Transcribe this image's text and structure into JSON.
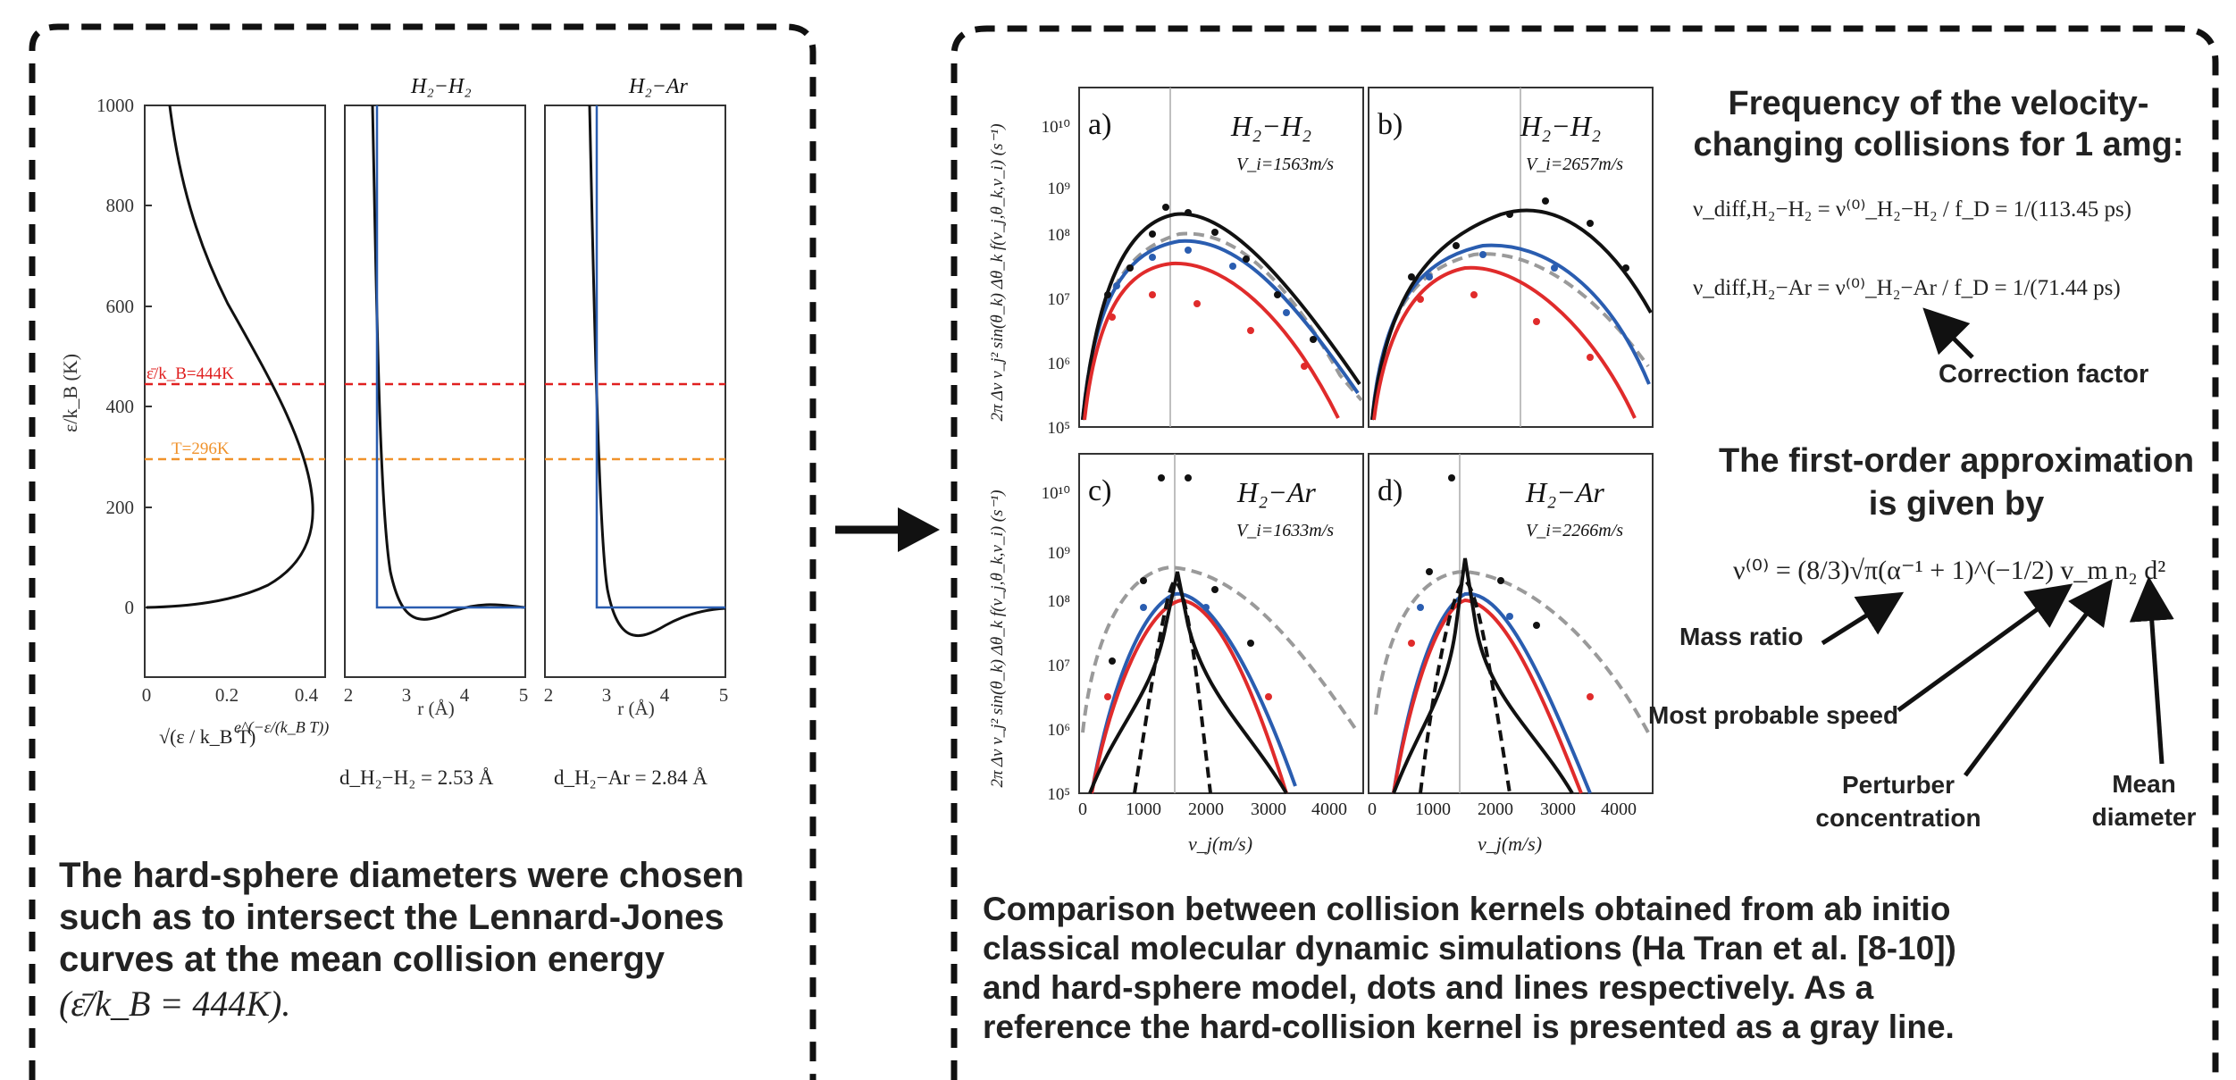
{
  "left_panel": {
    "y_axis_label": "ε/k_B (K)",
    "y_ticks": [
      "0",
      "200",
      "400",
      "600",
      "800",
      "1000"
    ],
    "plot1": {
      "x_ticks": [
        "0",
        "0.2",
        "0.4"
      ],
      "x_label_sqrt": "√(ε / k_B T)",
      "x_label_exp": "e^(−ε/(k_B T))"
    },
    "plot2": {
      "title": "H₂−H₂",
      "x_ticks": [
        "2",
        "3",
        "4",
        "5"
      ],
      "x_label": "r (Å)"
    },
    "plot3": {
      "title": "H₂−Ar",
      "x_ticks": [
        "2",
        "3",
        "4",
        "5"
      ],
      "x_label": "r (Å)"
    },
    "line_labels": {
      "mean_energy": "ε̄/k_B=444K",
      "temperature": "T=296K"
    },
    "diam_h2h2": "d_H₂−H₂ = 2.53 Å",
    "diam_h2ar": "d_H₂−Ar = 2.84 Å",
    "caption_lines": [
      "The hard-sphere diameters were chosen",
      "such as to intersect the Lennard-Jones",
      "curves at the mean collision energy"
    ],
    "caption_formula": "(ε̄/k_B = 444K).",
    "colors": {
      "red_line": "#e02020",
      "orange_line": "#f0922b",
      "lj_curve": "#111111",
      "hs_curve": "#2a5db0"
    }
  },
  "right_panel": {
    "y_axis_label": "2π Δv v_j² sin(θ_k) Δθ_k f(v_j,θ_k,v_i)  (s⁻¹)",
    "y_ticks": [
      "10⁵",
      "10⁶",
      "10⁷",
      "10⁸",
      "10⁹",
      "10¹⁰"
    ],
    "x_ticks": [
      "0",
      "1000",
      "2000",
      "3000",
      "4000"
    ],
    "x_label": "v_j(m/s)",
    "panels": [
      {
        "letter": "a)",
        "system": "H₂−H₂",
        "vi": "V_i=1563m/s"
      },
      {
        "letter": "b)",
        "system": "H₂−H₂",
        "vi": "V_i=2657m/s"
      },
      {
        "letter": "c)",
        "system": "H₂−Ar",
        "vi": "V_i=1633m/s"
      },
      {
        "letter": "d)",
        "system": "H₂−Ar",
        "vi": "V_i=2266m/s"
      }
    ],
    "freq_title_lines": [
      "Frequency of the velocity-",
      "changing collisions for 1 amg:"
    ],
    "eq1": "ν_diff,H₂−H₂ = ν⁽⁰⁾_H₂−H₂ / f_D = 1/(113.45 ps)",
    "eq2": "ν_diff,H₂−Ar = ν⁽⁰⁾_H₂−Ar / f_D = 1/(71.44 ps)",
    "correction_label": "Correction factor",
    "approx_title_lines": [
      "The first-order approximation",
      "is given by"
    ],
    "approx_eq": "ν⁽⁰⁾ = (8/3)√π(α⁻¹ + 1)^(−1/2) v_m n₂ d²",
    "labels": {
      "mass_ratio": "Mass ratio",
      "most_probable": "Most probable speed",
      "perturber": [
        "Perturber",
        "concentration"
      ],
      "mean_diameter": [
        "Mean",
        "diameter"
      ]
    },
    "caption_lines": [
      "Comparison between collision kernels obtained from ab initio",
      "classical molecular dynamic simulations (Ha Tran et al. [8-10])",
      "and hard-sphere model, dots and lines respectively. As a",
      "reference the hard-collision kernel is presented as a gray line."
    ],
    "series_colors": {
      "black": "#111111",
      "blue": "#2a5db0",
      "red": "#e02b2b",
      "gray": "#9a9a9a"
    }
  }
}
